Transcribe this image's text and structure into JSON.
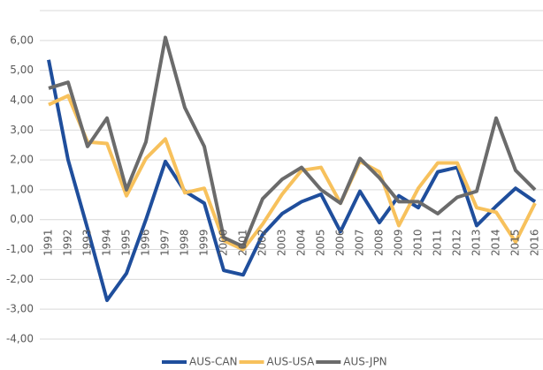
{
  "chart_data": {
    "type": "line",
    "categories": [
      "1991",
      "1992",
      "1993",
      "1994",
      "1995",
      "1996",
      "1997",
      "1998",
      "1999",
      "2000",
      "2001",
      "2002",
      "2003",
      "2004",
      "2005",
      "2006",
      "2007",
      "2008",
      "2009",
      "2010",
      "2011",
      "2012",
      "2013",
      "2014",
      "2015",
      "2016"
    ],
    "series": [
      {
        "name": "AUS-CAN",
        "color": "#1f4e9c",
        "values": [
          5.35,
          2.0,
          -0.3,
          -2.7,
          -1.8,
          0.0,
          1.95,
          0.95,
          0.55,
          -1.7,
          -1.85,
          -0.5,
          0.2,
          0.6,
          0.85,
          -0.4,
          0.95,
          -0.1,
          0.8,
          0.4,
          1.6,
          1.75,
          -0.2,
          0.45,
          1.05,
          0.6
        ]
      },
      {
        "name": "AUS-USA",
        "color": "#f7c15c",
        "values": [
          3.85,
          4.15,
          2.6,
          2.55,
          0.8,
          2.05,
          2.7,
          0.9,
          1.05,
          -0.7,
          -1.0,
          -0.15,
          0.85,
          1.65,
          1.75,
          0.55,
          1.95,
          1.6,
          -0.2,
          1.05,
          1.9,
          1.9,
          0.4,
          0.25,
          -0.75,
          0.55
        ]
      },
      {
        "name": "AUS-JPN",
        "color": "#6b6b6b",
        "values": [
          4.4,
          4.6,
          2.45,
          3.4,
          1.0,
          2.6,
          6.1,
          3.75,
          2.45,
          -0.6,
          -0.9,
          0.7,
          1.35,
          1.75,
          1.0,
          0.55,
          2.05,
          1.4,
          0.6,
          0.6,
          0.2,
          0.75,
          0.95,
          3.4,
          1.65,
          1.0
        ]
      }
    ],
    "ylim": [
      -4,
      7
    ],
    "yticks": [
      {
        "value": -4,
        "label": "-4,00"
      },
      {
        "value": -3,
        "label": "-3,00"
      },
      {
        "value": -2,
        "label": "-2,00"
      },
      {
        "value": -1,
        "label": "-1,00"
      },
      {
        "value": 0,
        "label": "0,00"
      },
      {
        "value": 1,
        "label": "1,00"
      },
      {
        "value": 2,
        "label": "2,00"
      },
      {
        "value": 3,
        "label": "3,00"
      },
      {
        "value": 4,
        "label": "4,00"
      },
      {
        "value": 5,
        "label": "5,00"
      },
      {
        "value": 6,
        "label": "6,00"
      }
    ],
    "grid": true,
    "legend": "bottom"
  }
}
